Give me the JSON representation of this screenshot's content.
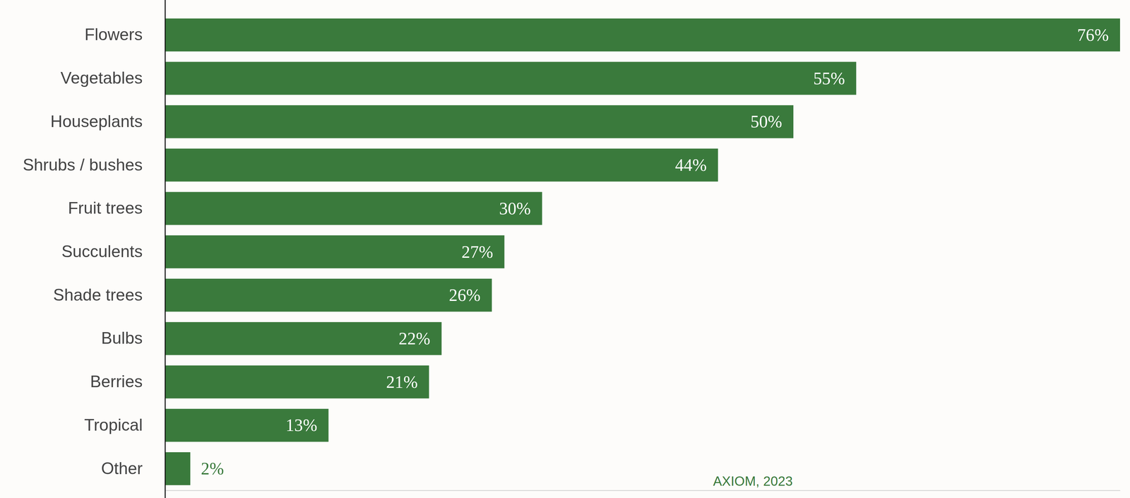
{
  "chart_data": {
    "type": "bar",
    "orientation": "horizontal",
    "categories": [
      "Flowers",
      "Vegetables",
      "Houseplants",
      "Shrubs / bushes",
      "Fruit trees",
      "Succulents",
      "Shade trees",
      "Bulbs",
      "Berries",
      "Tropical",
      "Other"
    ],
    "values": [
      76,
      55,
      50,
      44,
      30,
      27,
      26,
      22,
      21,
      13,
      2
    ],
    "value_labels": [
      "76%",
      "55%",
      "50%",
      "44%",
      "30%",
      "27%",
      "26%",
      "22%",
      "21%",
      "13%",
      "2%"
    ],
    "data_labels": true,
    "color": "#3a7a3c",
    "xlim": [
      0,
      76
    ],
    "xticks": [],
    "tick_labels": "y",
    "grid": false,
    "source": "AXIOM, 2023"
  }
}
